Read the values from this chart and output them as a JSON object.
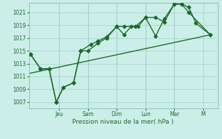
{
  "xlabel": "Pression niveau de la mer( hPa )",
  "bg_color": "#cceee8",
  "line_color": "#1a6b2a",
  "grid_color": "#aad4ce",
  "ylim": [
    1006.0,
    1022.5
  ],
  "yticks": [
    1007,
    1009,
    1011,
    1013,
    1015,
    1017,
    1019,
    1021
  ],
  "day_labels": [
    "Jeu",
    "Sam",
    "Dim",
    "Lun",
    "Mar",
    "M"
  ],
  "day_positions": [
    2,
    4,
    6,
    8,
    10,
    12
  ],
  "xlim": [
    -0.1,
    13.0
  ],
  "line1_x": [
    0,
    0.7,
    1.3,
    1.8,
    2.3,
    3.0,
    3.5,
    4.0,
    4.7,
    5.3,
    6.0,
    6.5,
    7.0,
    7.5,
    8.0,
    8.7,
    9.3,
    10.0,
    10.5,
    11.0,
    11.5,
    12.5
  ],
  "line1_y": [
    1014.5,
    1012.2,
    1012.2,
    1007.0,
    1009.3,
    1010.0,
    1015.0,
    1015.0,
    1016.2,
    1017.0,
    1018.8,
    1017.5,
    1018.8,
    1018.8,
    1020.2,
    1017.3,
    1020.0,
    1022.3,
    1022.3,
    1021.8,
    1019.3,
    1017.5
  ],
  "line2_x": [
    0,
    0.7,
    1.3,
    1.8,
    2.3,
    3.0,
    3.5,
    4.2,
    4.7,
    5.3,
    6.0,
    6.5,
    7.3,
    8.0,
    8.7,
    9.3,
    10.0,
    10.5,
    11.0,
    12.5
  ],
  "line2_y": [
    1014.5,
    1012.2,
    1012.2,
    1007.0,
    1009.3,
    1010.0,
    1015.0,
    1016.0,
    1016.5,
    1017.2,
    1018.8,
    1018.8,
    1018.8,
    1020.2,
    1020.2,
    1019.5,
    1022.3,
    1022.3,
    1021.0,
    1017.5
  ],
  "line3_x": [
    0,
    12.5
  ],
  "line3_y": [
    1011.5,
    1017.5
  ],
  "marker_size": 2.5,
  "linewidth": 1.0
}
